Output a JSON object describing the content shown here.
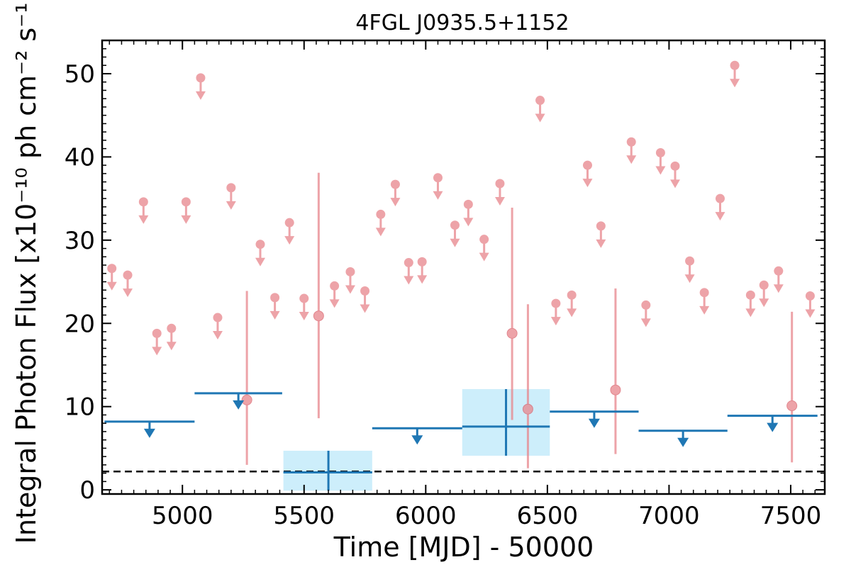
{
  "chart_data": {
    "type": "scatter",
    "title": "4FGL J0935.5+1152",
    "xlabel": "Time [MJD] - 50000",
    "ylabel": "Integral Photon Flux [x10⁻¹⁰ ph cm⁻² s⁻¹]",
    "xlim": [
      4670,
      7640
    ],
    "ylim": [
      -0.5,
      54
    ],
    "xticks": [
      5000,
      5500,
      6000,
      6500,
      7000,
      7500
    ],
    "xtick_labels": [
      "5000",
      "5500",
      "6000",
      "6500",
      "7000",
      "7500"
    ],
    "yticks": [
      0,
      10,
      20,
      30,
      40,
      50
    ],
    "ytick_labels": [
      "0",
      "10",
      "20",
      "30",
      "40",
      "50"
    ],
    "reference_line": {
      "y": 2.2,
      "style": "dashed",
      "color": "#000000"
    },
    "short_bins": {
      "color": "#e8858b",
      "upper_limits": [
        {
          "x": 4710,
          "y": 26.6
        },
        {
          "x": 4775,
          "y": 25.8
        },
        {
          "x": 4840,
          "y": 34.6
        },
        {
          "x": 4895,
          "y": 18.8
        },
        {
          "x": 4955,
          "y": 19.4
        },
        {
          "x": 5015,
          "y": 34.6
        },
        {
          "x": 5075,
          "y": 49.5
        },
        {
          "x": 5145,
          "y": 20.7
        },
        {
          "x": 5200,
          "y": 36.3
        },
        {
          "x": 5320,
          "y": 29.5
        },
        {
          "x": 5380,
          "y": 23.1
        },
        {
          "x": 5440,
          "y": 32.1
        },
        {
          "x": 5500,
          "y": 23.0
        },
        {
          "x": 5625,
          "y": 24.5
        },
        {
          "x": 5690,
          "y": 26.2
        },
        {
          "x": 5750,
          "y": 23.9
        },
        {
          "x": 5815,
          "y": 33.1
        },
        {
          "x": 5875,
          "y": 36.7
        },
        {
          "x": 5930,
          "y": 27.3
        },
        {
          "x": 5985,
          "y": 27.4
        },
        {
          "x": 6050,
          "y": 37.5
        },
        {
          "x": 6120,
          "y": 31.8
        },
        {
          "x": 6175,
          "y": 34.3
        },
        {
          "x": 6240,
          "y": 30.1
        },
        {
          "x": 6305,
          "y": 36.8
        },
        {
          "x": 6470,
          "y": 46.8
        },
        {
          "x": 6535,
          "y": 22.4
        },
        {
          "x": 6600,
          "y": 23.4
        },
        {
          "x": 6665,
          "y": 39.0
        },
        {
          "x": 6720,
          "y": 31.7
        },
        {
          "x": 6845,
          "y": 41.8
        },
        {
          "x": 6905,
          "y": 22.2
        },
        {
          "x": 6965,
          "y": 40.5
        },
        {
          "x": 7025,
          "y": 38.9
        },
        {
          "x": 7085,
          "y": 27.5
        },
        {
          "x": 7145,
          "y": 23.7
        },
        {
          "x": 7210,
          "y": 35.0
        },
        {
          "x": 7270,
          "y": 51.0
        },
        {
          "x": 7335,
          "y": 23.4
        },
        {
          "x": 7390,
          "y": 24.6
        },
        {
          "x": 7450,
          "y": 26.3
        },
        {
          "x": 7580,
          "y": 23.3
        }
      ],
      "detections": [
        {
          "x": 5265,
          "y": 10.8,
          "ylow": 3.0,
          "yhigh": 23.9
        },
        {
          "x": 5560,
          "y": 20.9,
          "ylow": 8.6,
          "yhigh": 38.1
        },
        {
          "x": 6355,
          "y": 18.8,
          "ylow": 8.4,
          "yhigh": 33.9
        },
        {
          "x": 6420,
          "y": 9.7,
          "ylow": 2.6,
          "yhigh": 22.3
        },
        {
          "x": 6780,
          "y": 12.0,
          "ylow": 4.3,
          "yhigh": 24.2
        },
        {
          "x": 7505,
          "y": 10.1,
          "ylow": 3.3,
          "yhigh": 21.4
        }
      ]
    },
    "long_bins": {
      "color": "#1f77b4",
      "band_color": "#cdeefb",
      "upper_limits": [
        {
          "x0": 4680,
          "x1": 5050,
          "y": 8.2
        },
        {
          "x0": 5050,
          "x1": 5410,
          "y": 11.6
        },
        {
          "x0": 5780,
          "x1": 6150,
          "y": 7.4
        },
        {
          "x0": 6510,
          "x1": 6875,
          "y": 9.4
        },
        {
          "x0": 6875,
          "x1": 7240,
          "y": 7.1
        },
        {
          "x0": 7240,
          "x1": 7610,
          "y": 8.9
        }
      ],
      "detections": [
        {
          "x0": 5415,
          "x1": 5780,
          "x": 5600,
          "y": 2.1,
          "ylow": -0.1,
          "yhigh": 4.7
        },
        {
          "x0": 6150,
          "x1": 6510,
          "x": 6330,
          "y": 7.6,
          "ylow": 4.1,
          "yhigh": 12.1
        }
      ]
    }
  }
}
